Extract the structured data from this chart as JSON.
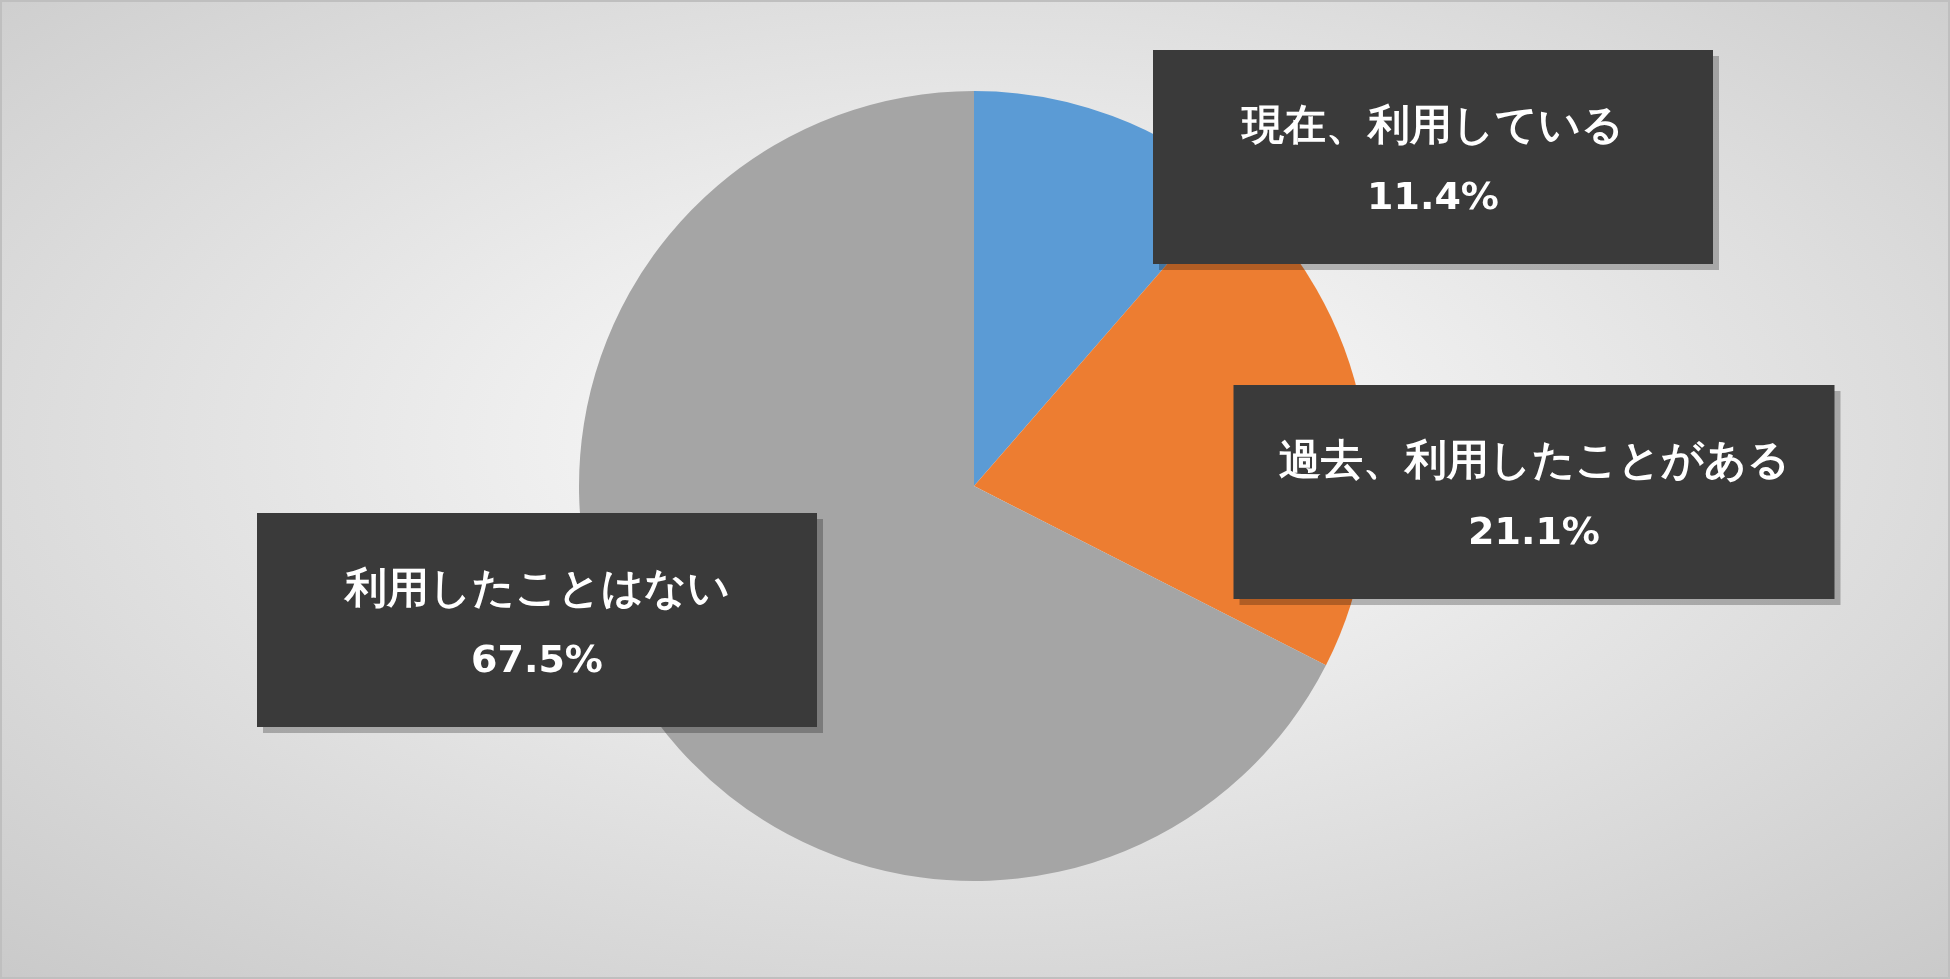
{
  "chart_data": {
    "type": "pie",
    "categories": [
      "現在、利用している",
      "過去、利用したことがある",
      "利用したことはない"
    ],
    "values": [
      11.4,
      21.1,
      67.5
    ],
    "colors": [
      "#5b9bd5",
      "#ed7d31",
      "#a5a5a5"
    ],
    "value_labels": [
      "11.4%",
      "21.1%",
      "67.5%"
    ]
  }
}
